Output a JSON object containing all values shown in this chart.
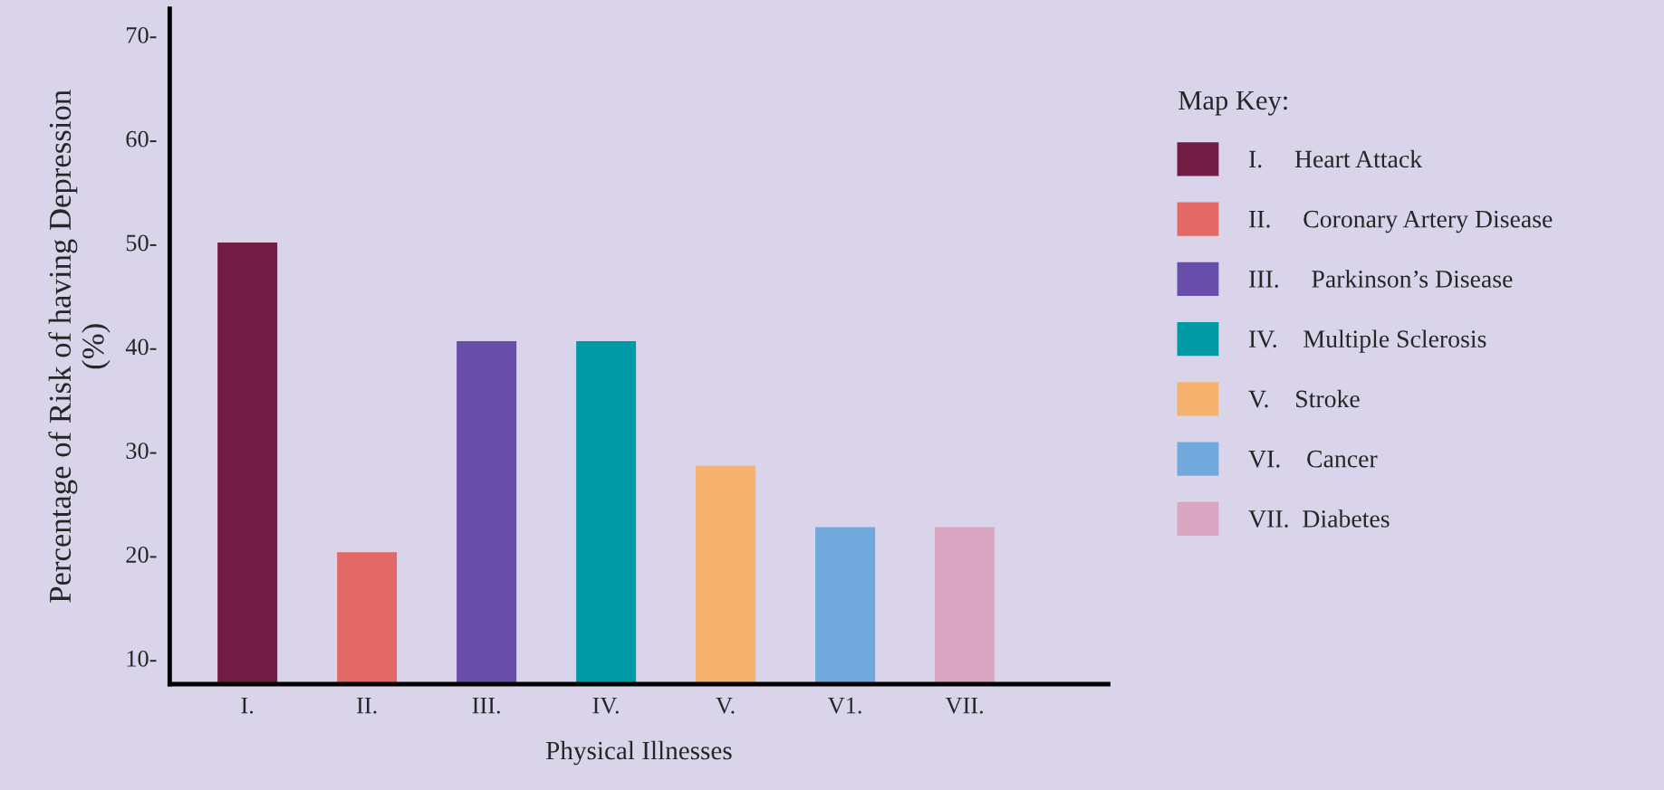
{
  "chart_data": {
    "type": "bar",
    "xlabel": "Physical Illnesses",
    "ylabel": "Percentage of Risk of having Depression\n(%)",
    "legend_title": "Map Key:",
    "categories": [
      "I.",
      "II.",
      "III.",
      "IV.",
      "V.",
      "V1.",
      "VII."
    ],
    "series": [
      {
        "name": "I.     Heart Attack",
        "color": "#721b43",
        "values": [
          50,
          null,
          null,
          null,
          null,
          null,
          null
        ]
      },
      {
        "name": "II.     Coronary Artery Disease",
        "color": "#e26966",
        "values": [
          null,
          20.2,
          null,
          null,
          null,
          null,
          null
        ]
      },
      {
        "name": "III.     Parkinson’s Disease",
        "color": "#684fa9",
        "values": [
          null,
          null,
          40.5,
          null,
          null,
          null,
          null
        ]
      },
      {
        "name": "IV.    Multiple Sclerosis",
        "color": "#0099a6",
        "values": [
          null,
          null,
          null,
          40.5,
          null,
          null,
          null
        ]
      },
      {
        "name": "V.    Stroke",
        "color": "#f6b16d",
        "values": [
          null,
          null,
          null,
          null,
          28.5,
          null,
          null
        ]
      },
      {
        "name": "VI.    Cancer",
        "color": "#71a9dd",
        "values": [
          null,
          null,
          null,
          null,
          null,
          22.6,
          null
        ]
      },
      {
        "name": "VII.  Diabetes",
        "color": "#d8a6c0",
        "values": [
          null,
          null,
          null,
          null,
          null,
          null,
          22.6
        ]
      }
    ],
    "ylim": [
      7.5,
      72.5
    ],
    "yticks": [
      {
        "value": 10,
        "label": "10-"
      },
      {
        "value": 20,
        "label": "20-"
      },
      {
        "value": 30,
        "label": "30-"
      },
      {
        "value": 40,
        "label": "40-"
      },
      {
        "value": 50,
        "label": "50-"
      },
      {
        "value": 60,
        "label": "60-"
      },
      {
        "value": 70,
        "label": "70-"
      }
    ],
    "grid": false,
    "legend": "right"
  }
}
